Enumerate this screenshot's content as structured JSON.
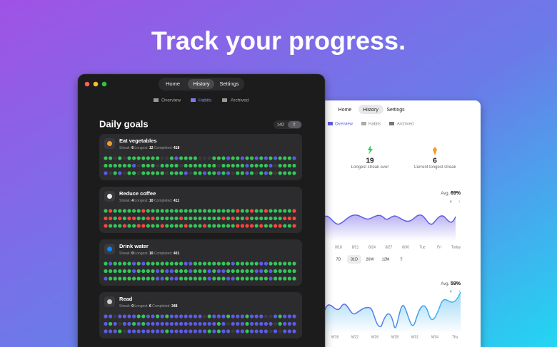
{
  "headline": "Track your progress.",
  "dark_window": {
    "tabs": [
      "Home",
      "History",
      "Settings"
    ],
    "subtabs": [
      "Overview",
      "Habits",
      "Archived"
    ],
    "section_title": "Daily goals",
    "view_toggle": "14D",
    "habits": [
      {
        "name": "Eat vegetables",
        "streak_label": "Streak:",
        "streak": 6,
        "longest_label": "Longest:",
        "longest": 12,
        "completed_label": "Completed:",
        "completed": 418
      },
      {
        "name": "Reduce coffee",
        "streak_label": "Streak:",
        "streak": 4,
        "longest_label": "Longest:",
        "longest": 10,
        "completed_label": "Completed:",
        "completed": 411
      },
      {
        "name": "Drink water",
        "streak_label": "Streak:",
        "streak": 0,
        "longest_label": "Longest:",
        "longest": 10,
        "completed_label": "Completed:",
        "completed": 401
      },
      {
        "name": "Read",
        "streak_label": "Streak:",
        "streak": 0,
        "longest_label": "Longest:",
        "longest": 6,
        "completed_label": "Completed:",
        "completed": 348
      }
    ]
  },
  "light_window": {
    "tabs": [
      "Home",
      "History",
      "Settings"
    ],
    "subtabs": [
      "Overview",
      "Habits",
      "Archived"
    ],
    "stats": [
      {
        "value": 19,
        "label": "Longest streak ever"
      },
      {
        "value": 6,
        "label": "Current longest streak"
      }
    ],
    "chart1": {
      "avg_label": "Avg.",
      "avg": "69%",
      "x_labels": [
        "8/18",
        "8/21",
        "8/24",
        "8/27",
        "8/30",
        "Tue",
        "Fri",
        "Today"
      ]
    },
    "ranges": [
      "7D",
      "31D",
      "26W",
      "12M"
    ],
    "chart2": {
      "avg_label": "Avg.",
      "avg": "59%",
      "x_labels": [
        "W18",
        "W22",
        "W26",
        "W28",
        "W31",
        "W34",
        "Thu"
      ]
    }
  }
}
